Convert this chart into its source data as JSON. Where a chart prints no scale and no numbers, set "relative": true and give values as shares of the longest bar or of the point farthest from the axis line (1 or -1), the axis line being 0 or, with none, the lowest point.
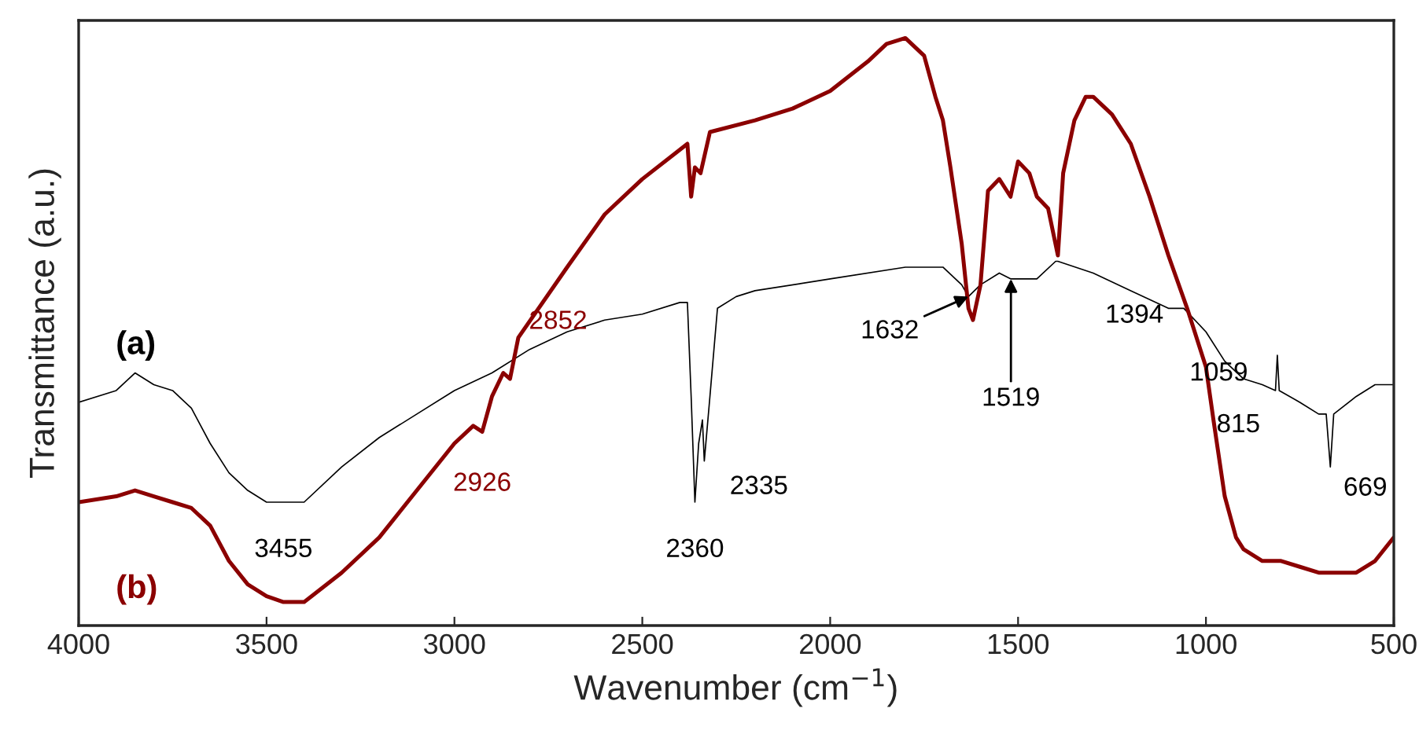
{
  "chart_data": {
    "type": "line",
    "relative": true,
    "xlabel": "Wavenumber (cm$^{−1}$)",
    "ylabel": "Transmittance (a.u.)",
    "xlim": [
      4000,
      500
    ],
    "xticks": [
      4000,
      3500,
      3000,
      2500,
      2000,
      1500,
      1000,
      500
    ],
    "grid": false,
    "series": [
      {
        "name": "(a)",
        "color": "#000000",
        "x": [
          4000,
          3900,
          3850,
          3800,
          3750,
          3700,
          3650,
          3600,
          3550,
          3500,
          3455,
          3400,
          3300,
          3200,
          3100,
          3000,
          2900,
          2800,
          2700,
          2600,
          2500,
          2400,
          2380,
          2370,
          2360,
          2350,
          2340,
          2335,
          2320,
          2300,
          2250,
          2200,
          2000,
          1800,
          1700,
          1650,
          1632,
          1600,
          1550,
          1519,
          1450,
          1400,
          1394,
          1300,
          1200,
          1100,
          1059,
          1000,
          950,
          900,
          850,
          815,
          810,
          805,
          750,
          700,
          680,
          669,
          660,
          600,
          550,
          500
        ],
        "values": [
          0.38,
          0.4,
          0.43,
          0.41,
          0.4,
          0.37,
          0.31,
          0.26,
          0.23,
          0.21,
          0.21,
          0.21,
          0.27,
          0.32,
          0.36,
          0.4,
          0.43,
          0.47,
          0.5,
          0.52,
          0.53,
          0.55,
          0.55,
          0.39,
          0.21,
          0.31,
          0.35,
          0.28,
          0.39,
          0.54,
          0.56,
          0.57,
          0.59,
          0.61,
          0.61,
          0.58,
          0.56,
          0.58,
          0.6,
          0.59,
          0.59,
          0.62,
          0.62,
          0.6,
          0.57,
          0.54,
          0.54,
          0.5,
          0.45,
          0.42,
          0.41,
          0.4,
          0.46,
          0.4,
          0.38,
          0.36,
          0.36,
          0.27,
          0.36,
          0.39,
          0.41,
          0.41
        ]
      },
      {
        "name": "(b)",
        "color": "#8b0000",
        "x": [
          4000,
          3900,
          3850,
          3800,
          3750,
          3700,
          3650,
          3600,
          3550,
          3500,
          3455,
          3400,
          3300,
          3200,
          3100,
          3000,
          2950,
          2926,
          2900,
          2870,
          2852,
          2830,
          2700,
          2600,
          2500,
          2400,
          2380,
          2370,
          2360,
          2345,
          2320,
          2200,
          2100,
          2000,
          1900,
          1850,
          1800,
          1750,
          1720,
          1700,
          1680,
          1650,
          1632,
          1620,
          1600,
          1580,
          1550,
          1520,
          1500,
          1470,
          1450,
          1420,
          1394,
          1380,
          1350,
          1320,
          1300,
          1250,
          1200,
          1150,
          1100,
          1050,
          1000,
          980,
          950,
          920,
          900,
          850,
          800,
          750,
          700,
          650,
          600,
          550,
          500
        ],
        "values": [
          0.21,
          0.22,
          0.23,
          0.22,
          0.21,
          0.2,
          0.17,
          0.11,
          0.07,
          0.05,
          0.04,
          0.04,
          0.09,
          0.15,
          0.23,
          0.31,
          0.34,
          0.33,
          0.39,
          0.43,
          0.42,
          0.49,
          0.61,
          0.7,
          0.76,
          0.81,
          0.82,
          0.73,
          0.78,
          0.77,
          0.84,
          0.86,
          0.88,
          0.91,
          0.96,
          0.99,
          1.0,
          0.97,
          0.9,
          0.86,
          0.78,
          0.65,
          0.54,
          0.52,
          0.58,
          0.74,
          0.76,
          0.73,
          0.79,
          0.77,
          0.73,
          0.71,
          0.63,
          0.77,
          0.86,
          0.9,
          0.9,
          0.87,
          0.82,
          0.73,
          0.63,
          0.54,
          0.44,
          0.35,
          0.22,
          0.15,
          0.13,
          0.11,
          0.11,
          0.1,
          0.09,
          0.09,
          0.09,
          0.11,
          0.15
        ]
      }
    ],
    "annotations": [
      {
        "text": "3455",
        "x": 3455,
        "y": 0.21
      },
      {
        "text": "2926",
        "x": 2926,
        "y": 0.33
      },
      {
        "text": "2852",
        "x": 2852,
        "y": 0.42
      },
      {
        "text": "2360",
        "x": 2360,
        "y": 0.21
      },
      {
        "text": "2335",
        "x": 2335,
        "y": 0.28
      },
      {
        "text": "1632",
        "x": 1632,
        "y": 0.56
      },
      {
        "text": "1519",
        "x": 1519,
        "y": 0.59
      },
      {
        "text": "1394",
        "x": 1394,
        "y": 0.62
      },
      {
        "text": "1059",
        "x": 1059,
        "y": 0.54
      },
      {
        "text": "815",
        "x": 815,
        "y": 0.4
      },
      {
        "text": "669",
        "x": 669,
        "y": 0.27
      }
    ]
  }
}
